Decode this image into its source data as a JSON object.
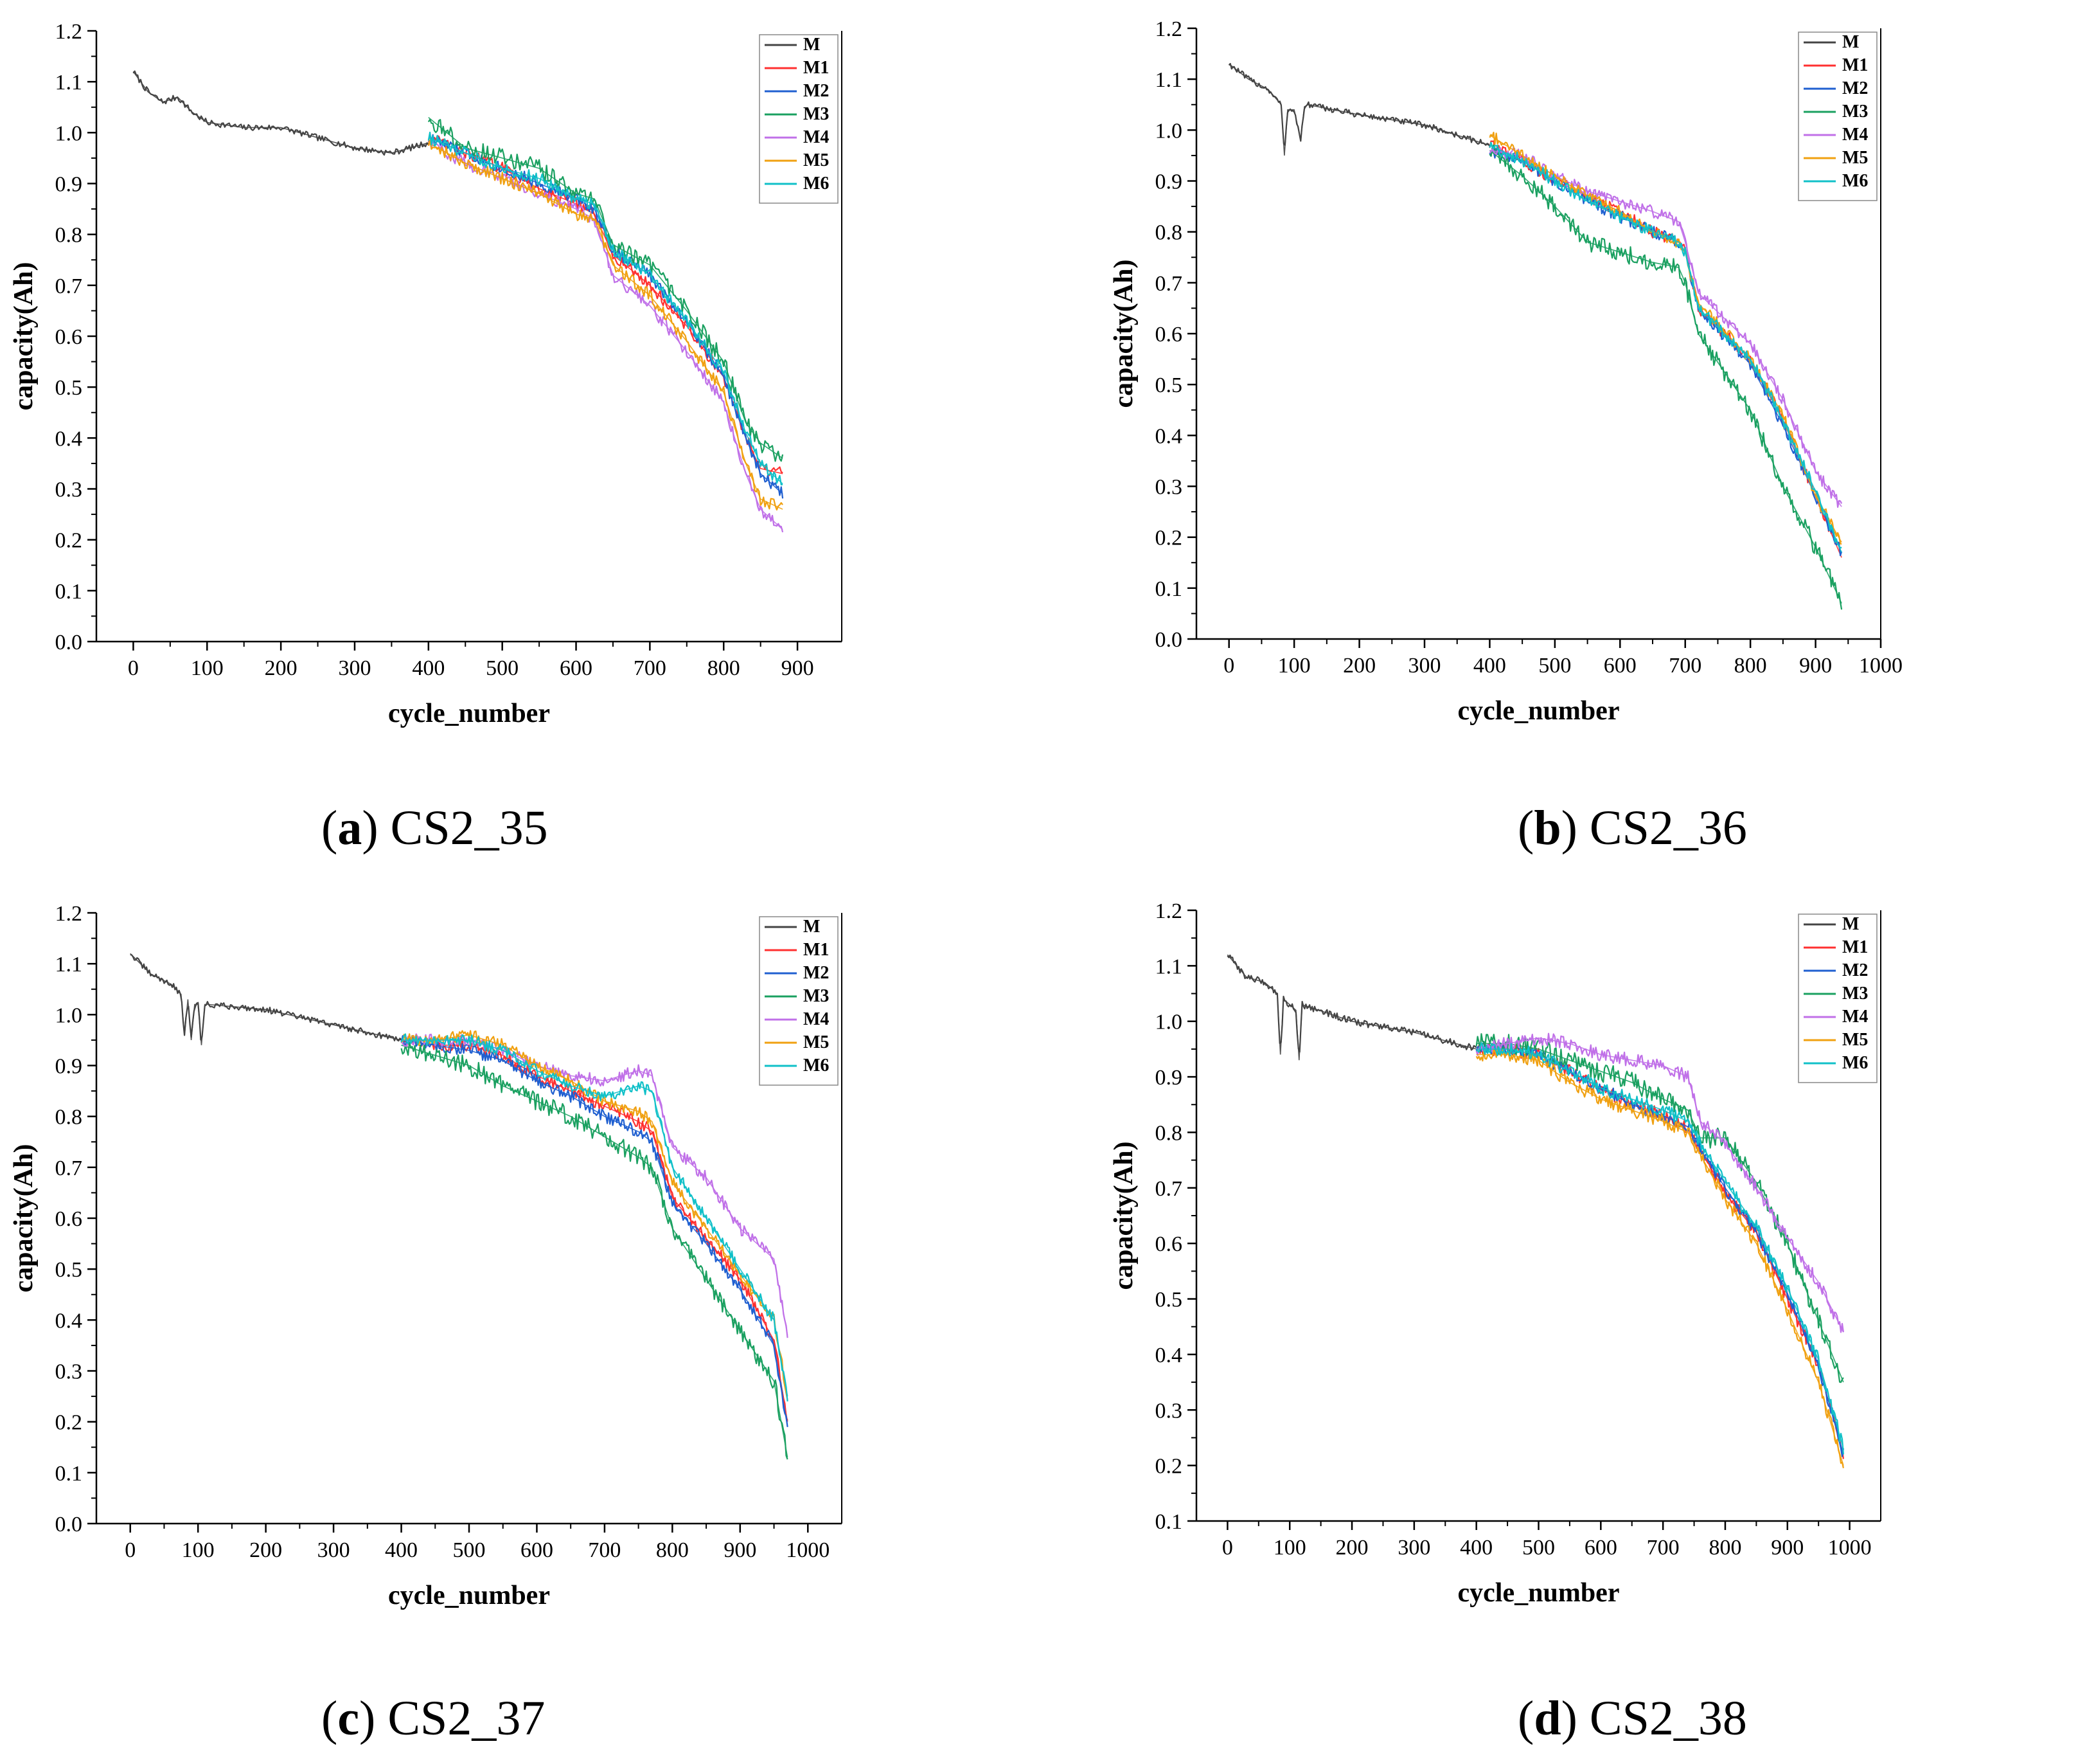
{
  "figure": {
    "x_label": "cycle_number",
    "y_label": "capacity(Ah)"
  },
  "legend": [
    {
      "name": "M",
      "color": "#444444"
    },
    {
      "name": "M1",
      "color": "#ff3030"
    },
    {
      "name": "M2",
      "color": "#1f5fd0"
    },
    {
      "name": "M3",
      "color": "#1aa060"
    },
    {
      "name": "M4",
      "color": "#c070e8"
    },
    {
      "name": "M5",
      "color": "#f0a010"
    },
    {
      "name": "M6",
      "color": "#10c0c8"
    }
  ],
  "chart_data": [
    {
      "type": "line",
      "id": "a",
      "caption_letter": "a",
      "caption_text": "CS2_35",
      "xlabel": "cycle_number",
      "ylabel": "capacity(Ah)",
      "xlim": [
        -50,
        960
      ],
      "ylim": [
        0,
        1.2
      ],
      "xticks": [
        0,
        100,
        200,
        300,
        400,
        500,
        600,
        700,
        800,
        900
      ],
      "yticks": [
        0.0,
        0.1,
        0.2,
        0.3,
        0.4,
        0.5,
        0.6,
        0.7,
        0.8,
        0.9,
        1.0,
        1.1,
        1.2
      ],
      "legend_position": "top-right",
      "series": [
        {
          "name": "M",
          "x": [
            0,
            20,
            40,
            60,
            80,
            100,
            150,
            200,
            250,
            300,
            350,
            400
          ],
          "y": [
            1.12,
            1.08,
            1.06,
            1.07,
            1.04,
            1.02,
            1.01,
            1.01,
            0.99,
            0.97,
            0.96,
            0.98
          ]
        },
        {
          "name": "M1",
          "x": [
            400,
            450,
            500,
            550,
            600,
            625,
            650,
            700,
            750,
            800,
            830,
            850,
            880
          ],
          "y": [
            0.99,
            0.96,
            0.93,
            0.89,
            0.86,
            0.84,
            0.76,
            0.7,
            0.62,
            0.52,
            0.4,
            0.34,
            0.33
          ]
        },
        {
          "name": "M2",
          "x": [
            400,
            450,
            500,
            550,
            600,
            625,
            650,
            700,
            750,
            800,
            830,
            850,
            880
          ],
          "y": [
            0.99,
            0.96,
            0.93,
            0.9,
            0.87,
            0.85,
            0.77,
            0.72,
            0.63,
            0.52,
            0.4,
            0.33,
            0.29
          ]
        },
        {
          "name": "M3",
          "x": [
            400,
            450,
            500,
            550,
            600,
            625,
            650,
            700,
            750,
            800,
            830,
            850,
            880
          ],
          "y": [
            1.03,
            0.97,
            0.95,
            0.93,
            0.88,
            0.87,
            0.78,
            0.74,
            0.65,
            0.55,
            0.43,
            0.39,
            0.36
          ]
        },
        {
          "name": "M4",
          "x": [
            400,
            450,
            500,
            550,
            600,
            625,
            650,
            700,
            750,
            800,
            830,
            850,
            880
          ],
          "y": [
            0.98,
            0.94,
            0.91,
            0.88,
            0.85,
            0.83,
            0.72,
            0.66,
            0.57,
            0.47,
            0.33,
            0.26,
            0.22
          ]
        },
        {
          "name": "M5",
          "x": [
            400,
            450,
            500,
            550,
            600,
            625,
            650,
            700,
            750,
            800,
            830,
            850,
            880
          ],
          "y": [
            0.98,
            0.94,
            0.91,
            0.88,
            0.84,
            0.83,
            0.74,
            0.68,
            0.59,
            0.49,
            0.35,
            0.28,
            0.26
          ]
        },
        {
          "name": "M6",
          "x": [
            400,
            450,
            500,
            550,
            600,
            625,
            650,
            700,
            750,
            800,
            830,
            850,
            880
          ],
          "y": [
            0.99,
            0.96,
            0.93,
            0.91,
            0.87,
            0.86,
            0.77,
            0.72,
            0.63,
            0.53,
            0.41,
            0.35,
            0.31
          ]
        }
      ]
    },
    {
      "type": "line",
      "id": "b",
      "caption_letter": "b",
      "caption_text": "CS2_36",
      "xlabel": "cycle_number",
      "ylabel": "capacity(Ah)",
      "xlim": [
        -50,
        1000
      ],
      "ylim": [
        0,
        1.2
      ],
      "xticks": [
        0,
        100,
        200,
        300,
        400,
        500,
        600,
        700,
        800,
        900,
        1000
      ],
      "yticks": [
        0.0,
        0.1,
        0.2,
        0.3,
        0.4,
        0.5,
        0.6,
        0.7,
        0.8,
        0.9,
        1.0,
        1.1,
        1.2
      ],
      "legend_position": "top-right",
      "series": [
        {
          "name": "M",
          "x": [
            0,
            30,
            60,
            80,
            85,
            90,
            100,
            110,
            115,
            120,
            200,
            300,
            400
          ],
          "y": [
            1.13,
            1.1,
            1.08,
            1.05,
            0.95,
            1.04,
            1.04,
            0.98,
            1.04,
            1.05,
            1.03,
            1.01,
            0.97
          ]
        },
        {
          "name": "M1",
          "x": [
            400,
            450,
            500,
            550,
            600,
            650,
            690,
            700,
            720,
            800,
            850,
            900,
            940
          ],
          "y": [
            0.97,
            0.94,
            0.9,
            0.87,
            0.84,
            0.8,
            0.78,
            0.76,
            0.65,
            0.55,
            0.43,
            0.28,
            0.16
          ]
        },
        {
          "name": "M2",
          "x": [
            400,
            450,
            500,
            550,
            600,
            650,
            690,
            700,
            720,
            800,
            850,
            900,
            940
          ],
          "y": [
            0.96,
            0.94,
            0.9,
            0.86,
            0.83,
            0.8,
            0.78,
            0.76,
            0.65,
            0.54,
            0.42,
            0.28,
            0.17
          ]
        },
        {
          "name": "M3",
          "x": [
            400,
            450,
            500,
            550,
            600,
            650,
            690,
            700,
            720,
            800,
            850,
            900,
            940
          ],
          "y": [
            0.96,
            0.91,
            0.85,
            0.78,
            0.76,
            0.74,
            0.73,
            0.7,
            0.6,
            0.45,
            0.3,
            0.18,
            0.07
          ]
        },
        {
          "name": "M4",
          "x": [
            400,
            450,
            500,
            550,
            600,
            650,
            690,
            700,
            720,
            800,
            850,
            900,
            940
          ],
          "y": [
            0.96,
            0.95,
            0.91,
            0.88,
            0.86,
            0.84,
            0.82,
            0.78,
            0.68,
            0.58,
            0.47,
            0.33,
            0.26
          ]
        },
        {
          "name": "M5",
          "x": [
            400,
            450,
            500,
            550,
            600,
            650,
            690,
            700,
            720,
            800,
            850,
            900,
            940
          ],
          "y": [
            0.99,
            0.95,
            0.91,
            0.87,
            0.84,
            0.8,
            0.78,
            0.76,
            0.66,
            0.55,
            0.44,
            0.28,
            0.19
          ]
        },
        {
          "name": "M6",
          "x": [
            400,
            450,
            500,
            550,
            600,
            650,
            690,
            700,
            720,
            800,
            850,
            900,
            940
          ],
          "y": [
            0.97,
            0.94,
            0.9,
            0.86,
            0.83,
            0.8,
            0.78,
            0.76,
            0.65,
            0.55,
            0.43,
            0.29,
            0.17
          ]
        }
      ]
    },
    {
      "type": "line",
      "id": "c",
      "caption_letter": "c",
      "caption_text": "CS2_37",
      "xlabel": "cycle_number",
      "ylabel": "capacity(Ah)",
      "xlim": [
        -50,
        1050
      ],
      "ylim": [
        0,
        1.2
      ],
      "xticks": [
        0,
        100,
        200,
        300,
        400,
        500,
        600,
        700,
        800,
        900,
        1000
      ],
      "yticks": [
        0.0,
        0.1,
        0.2,
        0.3,
        0.4,
        0.5,
        0.6,
        0.7,
        0.8,
        0.9,
        1.0,
        1.1,
        1.2
      ],
      "legend_position": "top-right",
      "series": [
        {
          "name": "M",
          "x": [
            0,
            30,
            60,
            75,
            80,
            85,
            90,
            95,
            100,
            105,
            110,
            115,
            200,
            300,
            400
          ],
          "y": [
            1.12,
            1.08,
            1.06,
            1.04,
            0.96,
            1.03,
            0.95,
            1.02,
            1.02,
            0.94,
            1.02,
            1.02,
            1.01,
            0.98,
            0.95
          ]
        },
        {
          "name": "M1",
          "x": [
            400,
            450,
            500,
            550,
            600,
            650,
            700,
            750,
            770,
            800,
            850,
            900,
            950,
            970
          ],
          "y": [
            0.95,
            0.94,
            0.94,
            0.92,
            0.88,
            0.85,
            0.82,
            0.79,
            0.77,
            0.64,
            0.56,
            0.48,
            0.36,
            0.2
          ]
        },
        {
          "name": "M2",
          "x": [
            400,
            450,
            500,
            550,
            600,
            650,
            700,
            750,
            770,
            800,
            850,
            900,
            950,
            970
          ],
          "y": [
            0.95,
            0.94,
            0.93,
            0.91,
            0.87,
            0.84,
            0.8,
            0.77,
            0.75,
            0.63,
            0.55,
            0.46,
            0.35,
            0.19
          ]
        },
        {
          "name": "M3",
          "x": [
            400,
            450,
            500,
            550,
            600,
            650,
            700,
            750,
            770,
            800,
            850,
            900,
            950,
            970
          ],
          "y": [
            0.94,
            0.92,
            0.9,
            0.86,
            0.83,
            0.8,
            0.76,
            0.72,
            0.7,
            0.58,
            0.48,
            0.38,
            0.28,
            0.13
          ]
        },
        {
          "name": "M4",
          "x": [
            400,
            450,
            500,
            550,
            600,
            650,
            700,
            750,
            770,
            800,
            850,
            900,
            950,
            970
          ],
          "y": [
            0.95,
            0.95,
            0.95,
            0.93,
            0.9,
            0.88,
            0.87,
            0.89,
            0.88,
            0.74,
            0.68,
            0.58,
            0.52,
            0.37
          ]
        },
        {
          "name": "M5",
          "x": [
            400,
            450,
            500,
            550,
            600,
            650,
            700,
            750,
            770,
            800,
            850,
            900,
            950,
            970
          ],
          "y": [
            0.95,
            0.95,
            0.96,
            0.94,
            0.9,
            0.87,
            0.83,
            0.81,
            0.79,
            0.67,
            0.58,
            0.49,
            0.4,
            0.25
          ]
        },
        {
          "name": "M6",
          "x": [
            400,
            450,
            500,
            550,
            600,
            650,
            700,
            750,
            770,
            800,
            850,
            900,
            950,
            970
          ],
          "y": [
            0.95,
            0.95,
            0.95,
            0.93,
            0.89,
            0.86,
            0.84,
            0.86,
            0.85,
            0.7,
            0.6,
            0.5,
            0.4,
            0.25
          ]
        }
      ]
    },
    {
      "type": "line",
      "id": "d",
      "caption_letter": "d",
      "caption_text": "CS2_38",
      "xlabel": "cycle_number",
      "ylabel": "capacity(Ah)",
      "xlim": [
        -50,
        1050
      ],
      "ylim": [
        0.1,
        1.2
      ],
      "xticks": [
        0,
        100,
        200,
        300,
        400,
        500,
        600,
        700,
        800,
        900,
        1000
      ],
      "yticks": [
        0.1,
        0.2,
        0.3,
        0.4,
        0.5,
        0.6,
        0.7,
        0.8,
        0.9,
        1.0,
        1.1,
        1.2
      ],
      "legend_position": "top-right",
      "series": [
        {
          "name": "M",
          "x": [
            0,
            30,
            60,
            80,
            85,
            90,
            100,
            110,
            115,
            120,
            200,
            300,
            400
          ],
          "y": [
            1.12,
            1.08,
            1.07,
            1.05,
            0.94,
            1.04,
            1.03,
            1.02,
            0.93,
            1.03,
            1.0,
            0.98,
            0.95
          ]
        },
        {
          "name": "M1",
          "x": [
            400,
            450,
            500,
            550,
            600,
            650,
            700,
            740,
            760,
            800,
            850,
            900,
            950,
            990
          ],
          "y": [
            0.95,
            0.95,
            0.94,
            0.91,
            0.88,
            0.85,
            0.83,
            0.81,
            0.77,
            0.69,
            0.62,
            0.5,
            0.38,
            0.22
          ]
        },
        {
          "name": "M2",
          "x": [
            400,
            450,
            500,
            550,
            600,
            650,
            700,
            740,
            760,
            800,
            850,
            900,
            950,
            990
          ],
          "y": [
            0.95,
            0.95,
            0.94,
            0.91,
            0.88,
            0.85,
            0.83,
            0.81,
            0.77,
            0.7,
            0.62,
            0.51,
            0.38,
            0.22
          ]
        },
        {
          "name": "M3",
          "x": [
            400,
            450,
            500,
            550,
            600,
            650,
            700,
            740,
            760,
            800,
            850,
            900,
            950,
            990
          ],
          "y": [
            0.96,
            0.96,
            0.95,
            0.93,
            0.91,
            0.89,
            0.86,
            0.84,
            0.79,
            0.79,
            0.71,
            0.6,
            0.46,
            0.35
          ]
        },
        {
          "name": "M4",
          "x": [
            400,
            450,
            500,
            550,
            600,
            650,
            700,
            740,
            760,
            800,
            850,
            900,
            950,
            990
          ],
          "y": [
            0.95,
            0.96,
            0.97,
            0.96,
            0.94,
            0.93,
            0.92,
            0.9,
            0.82,
            0.78,
            0.7,
            0.61,
            0.53,
            0.44
          ]
        },
        {
          "name": "M5",
          "x": [
            400,
            450,
            500,
            550,
            600,
            650,
            700,
            740,
            760,
            800,
            850,
            900,
            950,
            990
          ],
          "y": [
            0.94,
            0.94,
            0.93,
            0.89,
            0.86,
            0.84,
            0.82,
            0.8,
            0.76,
            0.68,
            0.6,
            0.48,
            0.35,
            0.2
          ]
        },
        {
          "name": "M6",
          "x": [
            400,
            450,
            500,
            550,
            600,
            650,
            700,
            740,
            760,
            800,
            850,
            900,
            950,
            990
          ],
          "y": [
            0.95,
            0.95,
            0.94,
            0.91,
            0.88,
            0.86,
            0.84,
            0.82,
            0.78,
            0.71,
            0.63,
            0.52,
            0.39,
            0.23
          ]
        }
      ]
    }
  ]
}
